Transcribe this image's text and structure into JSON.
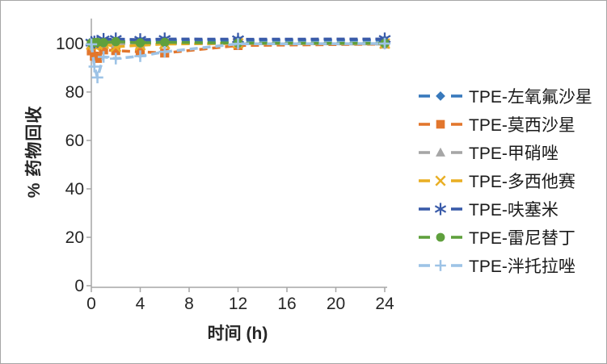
{
  "chart_data": {
    "type": "line",
    "title": "",
    "xlabel": "时间 (h)",
    "ylabel": "% 药物回收",
    "x": [
      0,
      0.25,
      0.5,
      1,
      2,
      4,
      6,
      12,
      24
    ],
    "xticks": [
      0,
      4,
      8,
      12,
      16,
      20,
      24
    ],
    "yticks": [
      0,
      20,
      40,
      60,
      80,
      100
    ],
    "xlim": [
      0,
      24.2
    ],
    "ylim": [
      0,
      110
    ],
    "grid": false,
    "line_style": "dashed",
    "legend_position": "right",
    "axis_color": "#A6A6A6",
    "tick_label_color": "#262626",
    "series": [
      {
        "name": "TPE-左氧氟沙星",
        "marker": "diamond",
        "color": "#3879BC",
        "values": [
          99.8,
          99.9,
          100.1,
          100.4,
          100.9,
          101.1,
          101.3,
          101.4,
          101.4
        ]
      },
      {
        "name": "TPE-莫西沙星",
        "marker": "square",
        "color": "#E2762D",
        "values": [
          97.0,
          94.8,
          93.9,
          97.4,
          97.1,
          96.6,
          96.1,
          99.2,
          99.8
        ]
      },
      {
        "name": "TPE-甲硝唑",
        "marker": "triangle",
        "color": "#A6A6A6",
        "values": [
          99.7,
          99.9,
          100.0,
          100.1,
          100.0,
          99.9,
          100.0,
          100.0,
          99.8
        ]
      },
      {
        "name": "TPE-多西他赛",
        "marker": "x",
        "color": "#E9AF25",
        "values": [
          99.5,
          99.3,
          99.6,
          99.9,
          98.7,
          99.3,
          99.8,
          100.1,
          100.0
        ]
      },
      {
        "name": "TPE-呋塞米",
        "marker": "asterisk",
        "color": "#3A5BA9",
        "values": [
          100.4,
          100.6,
          100.9,
          101.7,
          101.9,
          101.6,
          101.9,
          101.8,
          101.9
        ]
      },
      {
        "name": "TPE-雷尼替丁",
        "marker": "circle",
        "color": "#5FA03D",
        "values": [
          100.2,
          100.4,
          100.5,
          100.4,
          100.8,
          100.3,
          100.5,
          100.2,
          100.1
        ]
      },
      {
        "name": "TPE-泮托拉唑",
        "marker": "plus",
        "color": "#9DC3E6",
        "values": [
          99.7,
          90.5,
          86.0,
          94.5,
          93.8,
          94.8,
          96.6,
          99.9,
          100.0
        ]
      }
    ]
  }
}
